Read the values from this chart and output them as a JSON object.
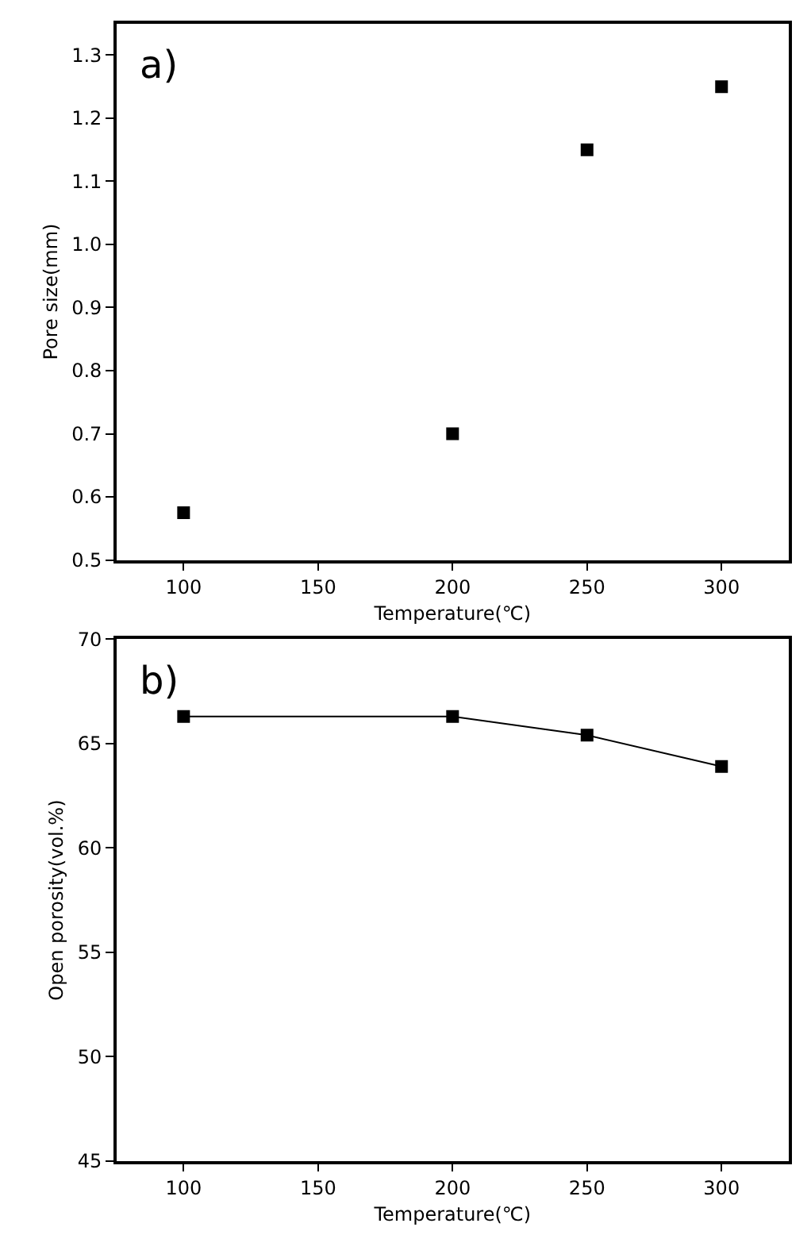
{
  "chart_data": [
    {
      "type": "scatter",
      "xlabel": "Temperature(℃)",
      "ylabel": "Pore size(mm)",
      "annotations": [
        "a)"
      ],
      "x": [
        100,
        200,
        250,
        300
      ],
      "values": [
        0.575,
        0.7,
        1.15,
        1.25
      ],
      "color": "#000000",
      "marker": "square",
      "xlim": [
        75,
        325
      ],
      "xticks": [
        100,
        150,
        200,
        250,
        300
      ],
      "ylim": [
        0.5,
        1.35
      ],
      "yticks": [
        0.5,
        0.6,
        0.7,
        0.8,
        0.9,
        {
          "value": 1.0,
          "label": "1.0"
        },
        1.1,
        1.2,
        1.3
      ]
    },
    {
      "type": "line",
      "xlabel": "Temperature(℃)",
      "ylabel": "Open porosity(vol.%)",
      "annotations": [
        "b)"
      ],
      "x": [
        100,
        200,
        250,
        300
      ],
      "values": [
        66.3,
        66.3,
        65.4,
        63.9
      ],
      "color": "#000000",
      "marker": "square",
      "line_style": "solid",
      "xlim": [
        75,
        325
      ],
      "xticks": [
        100,
        150,
        200,
        250,
        300
      ],
      "ylim": [
        45,
        70
      ],
      "yticks": [
        45,
        50,
        55,
        60,
        65,
        70
      ]
    }
  ]
}
